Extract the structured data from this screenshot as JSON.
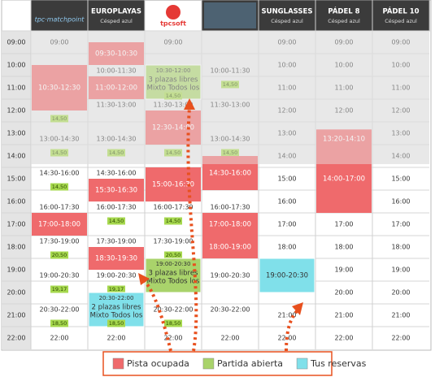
{
  "hours": [
    "09:00",
    "10:00",
    "11:00",
    "12:00",
    "13:00",
    "14:00",
    "15:00",
    "16:00",
    "17:00",
    "18:00",
    "19:00",
    "20:00",
    "21:00",
    "22:00"
  ],
  "statuses": {
    "busy": {
      "label": "Pista ocupada",
      "color": "#ef6a6c"
    },
    "open": {
      "label": "Partida abierta",
      "color": "#a9d36b"
    },
    "mine": {
      "label": "Tus reservas",
      "color": "#80e0ea"
    }
  },
  "columns": [
    {
      "logo": "tpc·matchpoint",
      "slots": [
        {
          "time": "09:00",
          "status": "free"
        },
        {
          "time": "10:30-12:30",
          "status": "busy",
          "price": "14,50"
        },
        {
          "time": "13:00-14:30",
          "status": "free",
          "price": "14,50"
        },
        {
          "time": "14:30-16:00",
          "status": "free",
          "price": "14,50"
        },
        {
          "time": "16:00-17:30",
          "status": "free"
        },
        {
          "time": "17:00-18:00",
          "status": "busy"
        },
        {
          "time": "17:30-19:00",
          "status": "free",
          "price": "20,50"
        },
        {
          "time": "19:00-20:30",
          "status": "free",
          "price": "19,17"
        },
        {
          "time": "20:30-22:00",
          "status": "free",
          "price": "18,50"
        },
        {
          "time": "22:00",
          "status": "free"
        }
      ]
    },
    {
      "name": "EUROPLAYAS",
      "sub": "Césped azul",
      "slots": [
        {
          "time": "09:30-10:30",
          "status": "busy"
        },
        {
          "time": "10:00-11:30",
          "status": "free"
        },
        {
          "time": "11:00-12:00",
          "status": "busy"
        },
        {
          "time": "11:30-13:00",
          "status": "free"
        },
        {
          "time": "13:00-14:30",
          "status": "free",
          "price": "14,50"
        },
        {
          "time": "14:30-16:00",
          "status": "free"
        },
        {
          "time": "15:30-16:30",
          "status": "busy"
        },
        {
          "time": "16:00-17:30",
          "status": "free",
          "price": "14,50"
        },
        {
          "time": "17:30-19:00",
          "status": "free"
        },
        {
          "time": "18:30-19:30",
          "status": "busy"
        },
        {
          "time": "19:00-20:30",
          "status": "free",
          "price": "19,17"
        },
        {
          "time": "20:30-22:00",
          "status": "mine",
          "info": [
            "2 plazas libres",
            "Mixto Todos los"
          ],
          "price": "18,50"
        },
        {
          "time": "22:00",
          "status": "free"
        }
      ]
    },
    {
      "logo": "tpcsoft",
      "slots": [
        {
          "time": "09:00",
          "status": "free"
        },
        {
          "time": "10:30-12:00",
          "status": "open",
          "info": [
            "3 plazas libres",
            "Mixto Todos los"
          ],
          "price": "14,50"
        },
        {
          "time": "11:30-13:00",
          "status": "free"
        },
        {
          "time": "12:30-14:00",
          "status": "busy"
        },
        {
          "time": "13:00-14:30",
          "status": "free",
          "price": "14,50"
        },
        {
          "time": "15:00-16:30",
          "status": "busy"
        },
        {
          "time": "16:00-17:30",
          "status": "free",
          "price": "14,50"
        },
        {
          "time": "17:30-19:00",
          "status": "free",
          "price": "20,50"
        },
        {
          "time": "19:00-20:30",
          "status": "open",
          "info": [
            "3 plazas libres",
            "Mixto Todos los"
          ]
        },
        {
          "time": "20:30-22:00",
          "status": "free",
          "price": "18,50"
        },
        {
          "time": "22:00",
          "status": "free"
        }
      ]
    },
    {
      "slots": [
        {
          "time": "10:00-11:30",
          "status": "free",
          "price": "14,50"
        },
        {
          "time": "11:30-13:00",
          "status": "free"
        },
        {
          "time": "13:00-14:30",
          "status": "free",
          "price": "14,50"
        },
        {
          "time": "14:30-16:00",
          "status": "busy"
        },
        {
          "time": "16:00-17:30",
          "status": "free"
        },
        {
          "time": "17:00-18:00",
          "status": "busy"
        },
        {
          "time": "18:00-19:00",
          "status": "busy"
        },
        {
          "time": "19:00-20:30",
          "status": "free"
        },
        {
          "time": "20:30-22:00",
          "status": "free"
        },
        {
          "time": "22:00",
          "status": "free"
        }
      ]
    },
    {
      "name": "SUNGLASSES",
      "sub": "Césped azul",
      "slots": [
        {
          "time": "09:00",
          "status": "free"
        },
        {
          "time": "10:00",
          "status": "free"
        },
        {
          "time": "11:00",
          "status": "free"
        },
        {
          "time": "12:00",
          "status": "free"
        },
        {
          "time": "13:00",
          "status": "free"
        },
        {
          "time": "14:00",
          "status": "free"
        },
        {
          "time": "15:00",
          "status": "free"
        },
        {
          "time": "16:00",
          "status": "free"
        },
        {
          "time": "17:00",
          "status": "free"
        },
        {
          "time": "18:00",
          "status": "free"
        },
        {
          "time": "19:00-20:30",
          "status": "mine"
        },
        {
          "time": "21:00",
          "status": "free"
        },
        {
          "time": "22:00",
          "status": "free"
        }
      ]
    },
    {
      "name": "PÁDEL 8",
      "sub": "Césped azul",
      "slots": [
        {
          "time": "09:00",
          "status": "free"
        },
        {
          "time": "10:00",
          "status": "free"
        },
        {
          "time": "11:00",
          "status": "free"
        },
        {
          "time": "12:00",
          "status": "free"
        },
        {
          "time": "13:20-14:10",
          "status": "busy"
        },
        {
          "time": "14:00-17:00",
          "status": "busy"
        },
        {
          "time": "17:00",
          "status": "free"
        },
        {
          "time": "18:00",
          "status": "free"
        },
        {
          "time": "19:00",
          "status": "free"
        },
        {
          "time": "20:00",
          "status": "free"
        },
        {
          "time": "21:00",
          "status": "free"
        },
        {
          "time": "22:00",
          "status": "free"
        }
      ]
    },
    {
      "name": "PÁDEL 10",
      "sub": "Césped azul",
      "slots": [
        {
          "time": "09:00",
          "status": "free"
        },
        {
          "time": "10:00",
          "status": "free"
        },
        {
          "time": "11:00",
          "status": "free"
        },
        {
          "time": "12:00",
          "status": "free"
        },
        {
          "time": "13:00",
          "status": "free"
        },
        {
          "time": "14:00",
          "status": "free"
        },
        {
          "time": "15:00",
          "status": "free"
        },
        {
          "time": "16:00",
          "status": "free"
        },
        {
          "time": "17:00",
          "status": "free"
        },
        {
          "time": "18:00",
          "status": "free"
        },
        {
          "time": "19:00",
          "status": "free"
        },
        {
          "time": "20:00",
          "status": "free"
        },
        {
          "time": "21:00",
          "status": "free"
        },
        {
          "time": "22:00",
          "status": "free"
        }
      ]
    }
  ]
}
